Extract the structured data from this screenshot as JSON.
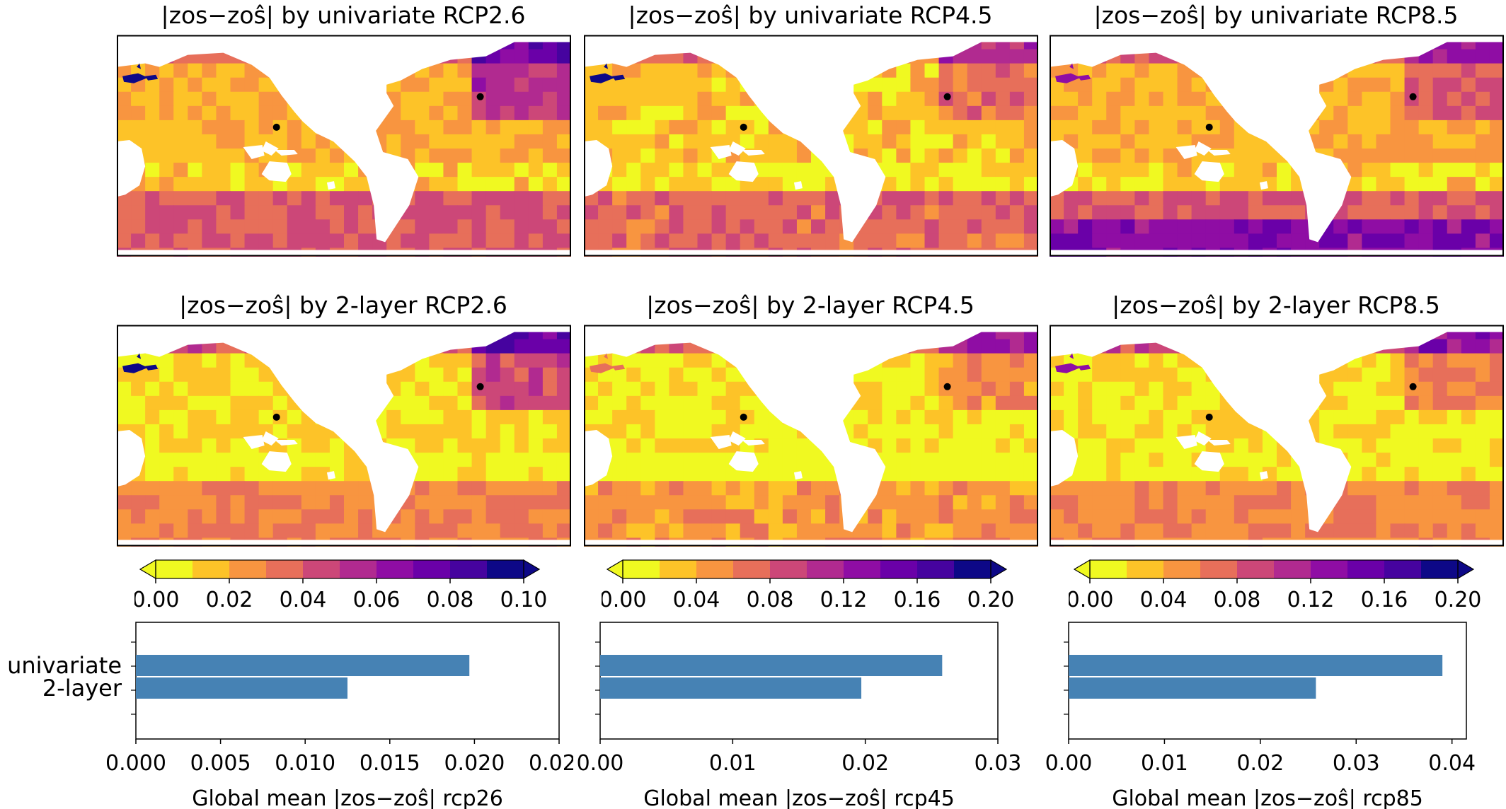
{
  "maps": [
    {
      "title": "|zos−zoŝ| by univariate RCP2.6",
      "model": "univariate",
      "scenario": "RCP2.6"
    },
    {
      "title": "|zos−zoŝ| by univariate RCP4.5",
      "model": "univariate",
      "scenario": "RCP4.5"
    },
    {
      "title": "|zos−zoŝ| by univariate RCP8.5",
      "model": "univariate",
      "scenario": "RCP8.5"
    },
    {
      "title": "|zos−zoŝ| by 2-layer RCP2.6",
      "model": "2-layer",
      "scenario": "RCP2.6"
    },
    {
      "title": "|zos−zoŝ| by 2-layer RCP4.5",
      "model": "2-layer",
      "scenario": "RCP4.5"
    },
    {
      "title": "|zos−zoŝ| by 2-layer RCP8.5",
      "model": "2-layer",
      "scenario": "RCP8.5"
    }
  ],
  "colorbars": [
    {
      "ticks": [
        "0.00",
        "0.02",
        "0.04",
        "0.06",
        "0.08",
        "0.10"
      ],
      "range": [
        0,
        0.1
      ]
    },
    {
      "ticks": [
        "0.00",
        "0.04",
        "0.08",
        "0.12",
        "0.16",
        "0.20"
      ],
      "range": [
        0,
        0.2
      ]
    },
    {
      "ticks": [
        "0.00",
        "0.04",
        "0.08",
        "0.12",
        "0.16",
        "0.20"
      ],
      "range": [
        0,
        0.2
      ]
    }
  ],
  "colormap": [
    "#f0f921",
    "#fdc328",
    "#f89540",
    "#e76f5a",
    "#cc4778",
    "#b12a90",
    "#8f0da4",
    "#6a00a8",
    "#46039f",
    "#0d0887"
  ],
  "bar_color": "#4682b4",
  "chart_data": [
    {
      "type": "bar",
      "orientation": "horizontal",
      "categories": [
        "univariate",
        "2-layer"
      ],
      "values": [
        0.0197,
        0.0125
      ],
      "xlabel": "Global mean |zos−zoŝ| rcp26",
      "xlim": [
        0,
        0.025
      ],
      "xticks": [
        "0.000",
        "0.005",
        "0.010",
        "0.015",
        "0.020",
        "0.025"
      ]
    },
    {
      "type": "bar",
      "orientation": "horizontal",
      "categories": [
        "univariate",
        "2-layer"
      ],
      "values": [
        0.0258,
        0.0197
      ],
      "xlabel": "Global mean |zos−zoŝ| rcp45",
      "xlim": [
        0,
        0.03
      ],
      "xticks": [
        "0.00",
        "0.01",
        "0.02",
        "0.03"
      ]
    },
    {
      "type": "bar",
      "orientation": "horizontal",
      "categories": [
        "univariate",
        "2-layer"
      ],
      "values": [
        0.039,
        0.0258
      ],
      "xlabel": "Global mean |zos−zoŝ| rcp85",
      "xlim": [
        0,
        0.0415
      ],
      "xticks": [
        "0.00",
        "0.01",
        "0.02",
        "0.03",
        "0.04"
      ]
    }
  ]
}
